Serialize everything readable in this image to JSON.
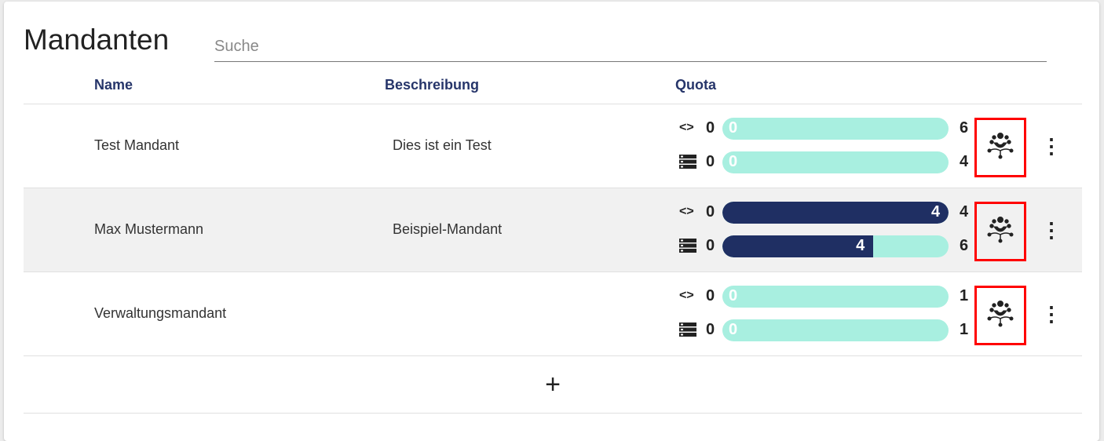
{
  "title": "Mandanten",
  "search": {
    "placeholder": "Suche",
    "value": ""
  },
  "columns": {
    "name": "Name",
    "description": "Beschreibung",
    "quota": "Quota"
  },
  "colors": {
    "bar_fill": "#1f2f63",
    "bar_bg": "#a8efe0",
    "highlight": "#ff0000"
  },
  "rows": [
    {
      "name": "Test Mandant",
      "description": "Dies ist ein Test",
      "quota": [
        {
          "icon": "code-icon",
          "min": "0",
          "used": "0",
          "max": "6",
          "fraction": 0
        },
        {
          "icon": "server-icon",
          "min": "0",
          "used": "0",
          "max": "4",
          "fraction": 0
        }
      ]
    },
    {
      "name": "Max Mustermann",
      "description": "Beispiel-Mandant",
      "quota": [
        {
          "icon": "code-icon",
          "min": "0",
          "used": "4",
          "max": "4",
          "fraction": 1
        },
        {
          "icon": "server-icon",
          "min": "0",
          "used": "4",
          "max": "6",
          "fraction": 0.667
        }
      ]
    },
    {
      "name": "Verwaltungsmandant",
      "description": "",
      "quota": [
        {
          "icon": "code-icon",
          "min": "0",
          "used": "0",
          "max": "1",
          "fraction": 0
        },
        {
          "icon": "server-icon",
          "min": "0",
          "used": "0",
          "max": "1",
          "fraction": 0
        }
      ]
    }
  ],
  "add_label": "+",
  "kebab": "⋮"
}
